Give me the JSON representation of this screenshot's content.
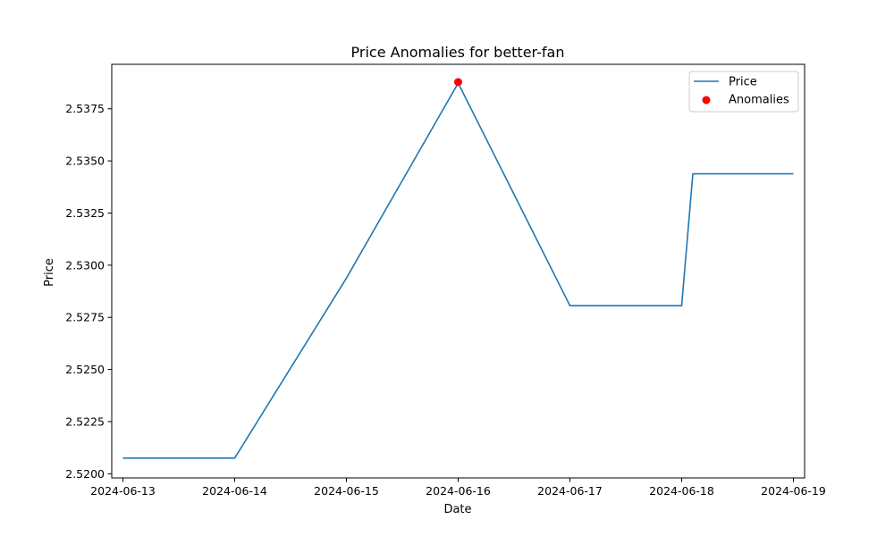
{
  "chart_data": {
    "type": "line",
    "title": "Price Anomalies for better-fan",
    "xlabel": "Date",
    "ylabel": "Price",
    "x_ticks": [
      "2024-06-13",
      "2024-06-14",
      "2024-06-15",
      "2024-06-16",
      "2024-06-17",
      "2024-06-18",
      "2024-06-19"
    ],
    "xlim": [
      "2024-06-12T21:36",
      "2024-06-19T02:24"
    ],
    "y_ticks": [
      2.52,
      2.5225,
      2.525,
      2.5275,
      2.53,
      2.5325,
      2.535,
      2.5375
    ],
    "y_tick_labels": [
      "2.5200",
      "2.5225",
      "2.5250",
      "2.5275",
      "2.5300",
      "2.5325",
      "2.5350",
      "2.5375"
    ],
    "ylim": [
      2.5198,
      2.53963
    ],
    "grid": false,
    "legend_position": "top-right",
    "series": [
      {
        "name": "Price",
        "kind": "line",
        "color": "#1f77b4",
        "points": [
          {
            "x": "2024-06-13T00:00",
            "y": 2.52075
          },
          {
            "x": "2024-06-14T00:00",
            "y": 2.52075
          },
          {
            "x": "2024-06-15T00:00",
            "y": 2.52938
          },
          {
            "x": "2024-06-16T00:00",
            "y": 2.53873
          },
          {
            "x": "2024-06-17T00:00",
            "y": 2.52806
          },
          {
            "x": "2024-06-18T00:00",
            "y": 2.52806
          },
          {
            "x": "2024-06-18T02:24",
            "y": 2.53438
          },
          {
            "x": "2024-06-19T00:00",
            "y": 2.53438
          }
        ]
      },
      {
        "name": "Anomalies",
        "kind": "scatter",
        "color": "#ff0000",
        "points": [
          {
            "x": "2024-06-16T00:00",
            "y": 2.53878
          }
        ]
      }
    ]
  }
}
